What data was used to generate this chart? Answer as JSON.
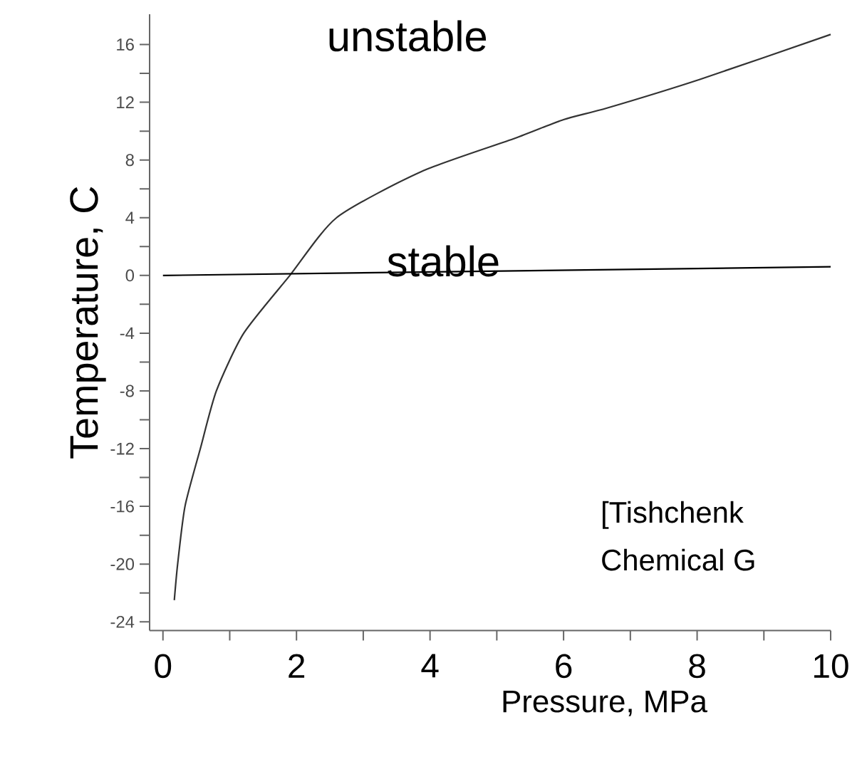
{
  "chart_data": {
    "type": "line",
    "xlabel": "Pressure, MPa",
    "ylabel": "Temperature, C",
    "xlim": [
      -0.2,
      10
    ],
    "ylim": [
      -24.6,
      18.1
    ],
    "xticks": [
      0,
      2,
      4,
      6,
      8,
      10
    ],
    "yticks": [
      -24,
      -20,
      -16,
      -12,
      -8,
      -4,
      0,
      4,
      8,
      12,
      16
    ],
    "series": [
      {
        "color": "#333333",
        "x": [
          0.17,
          0.22,
          0.33,
          0.56,
          0.8,
          1.21,
          1.9,
          2.6,
          3.87,
          5.27,
          6.0,
          6.65,
          8.05,
          10.0
        ],
        "values": [
          -22.5,
          -20,
          -16,
          -12,
          -8,
          -4,
          0,
          4,
          7.2,
          9.5,
          10.8,
          11.6,
          13.6,
          16.7
        ]
      },
      {
        "color": "#000000",
        "x": [
          0,
          10
        ],
        "values": [
          0,
          0.6
        ]
      }
    ],
    "annotations": [
      "unstable",
      "stable",
      "[Tishchenk",
      "Chemical G"
    ]
  }
}
